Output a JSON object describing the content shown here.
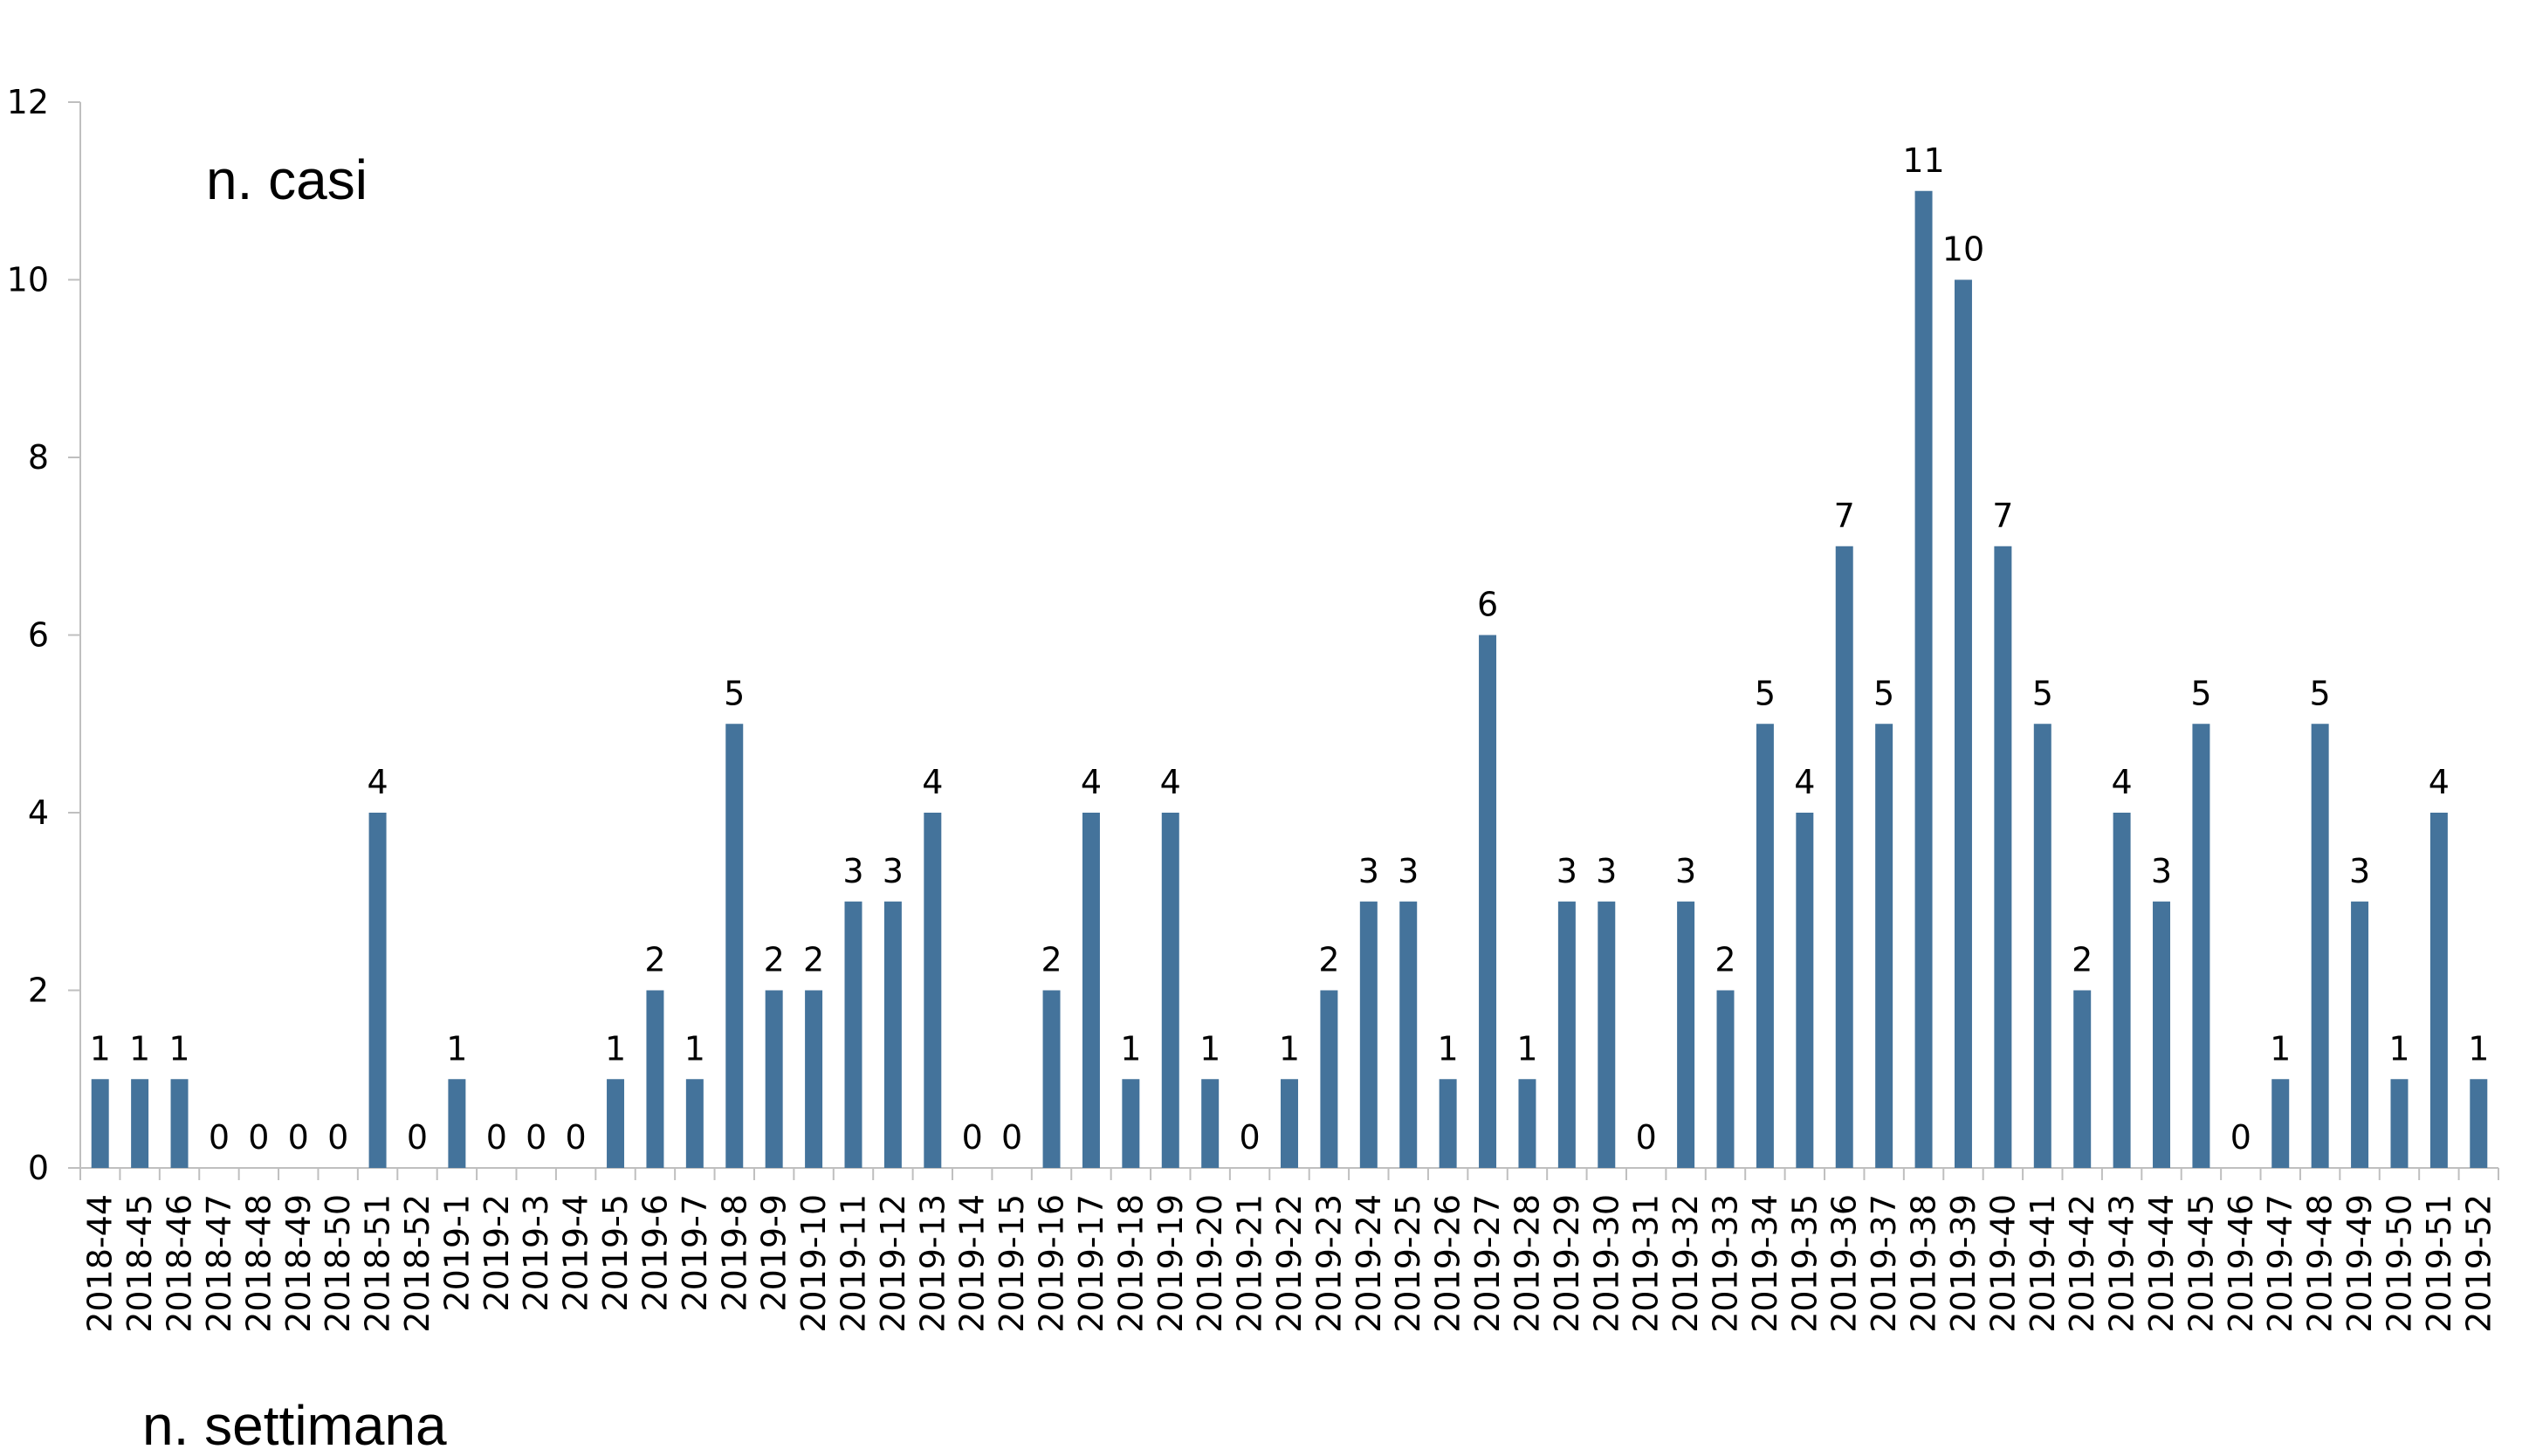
{
  "chart_data": {
    "type": "bar",
    "ylabel": "n. casi",
    "xlabel": "n. settimana",
    "ylim": [
      0,
      12
    ],
    "yticks": [
      "0",
      "2",
      "4",
      "6",
      "8",
      "10",
      "12"
    ],
    "grid": false,
    "categories": [
      "2018-44",
      "2018-45",
      "2018-46",
      "2018-47",
      "2018-48",
      "2018-49",
      "2018-50",
      "2018-51",
      "2018-52",
      "2019-1",
      "2019-2",
      "2019-3",
      "2019-4",
      "2019-5",
      "2019-6",
      "2019-7",
      "2019-8",
      "2019-9",
      "2019-10",
      "2019-11",
      "2019-12",
      "2019-13",
      "2019-14",
      "2019-15",
      "2019-16",
      "2019-17",
      "2019-18",
      "2019-19",
      "2019-20",
      "2019-21",
      "2019-22",
      "2019-23",
      "2019-24",
      "2019-25",
      "2019-26",
      "2019-27",
      "2019-28",
      "2019-29",
      "2019-30",
      "2019-31",
      "2019-32",
      "2019-33",
      "2019-34",
      "2019-35",
      "2019-36",
      "2019-37",
      "2019-38",
      "2019-39",
      "2019-40",
      "2019-41",
      "2019-42",
      "2019-43",
      "2019-44",
      "2019-45",
      "2019-46",
      "2019-47",
      "2019-48",
      "2019-49",
      "2019-50",
      "2019-51",
      "2019-52"
    ],
    "values": [
      1,
      1,
      1,
      0,
      0,
      0,
      0,
      4,
      0,
      1,
      0,
      0,
      0,
      1,
      2,
      1,
      5,
      2,
      2,
      3,
      3,
      4,
      0,
      0,
      2,
      4,
      1,
      4,
      1,
      0,
      1,
      2,
      3,
      3,
      1,
      6,
      1,
      3,
      3,
      0,
      3,
      2,
      5,
      4,
      7,
      5,
      11,
      10,
      7,
      5,
      2,
      4,
      3,
      5,
      0,
      1,
      5,
      3,
      1,
      4,
      1
    ],
    "bar_color": "#44739b",
    "axis_color": "#bfbfbf"
  }
}
